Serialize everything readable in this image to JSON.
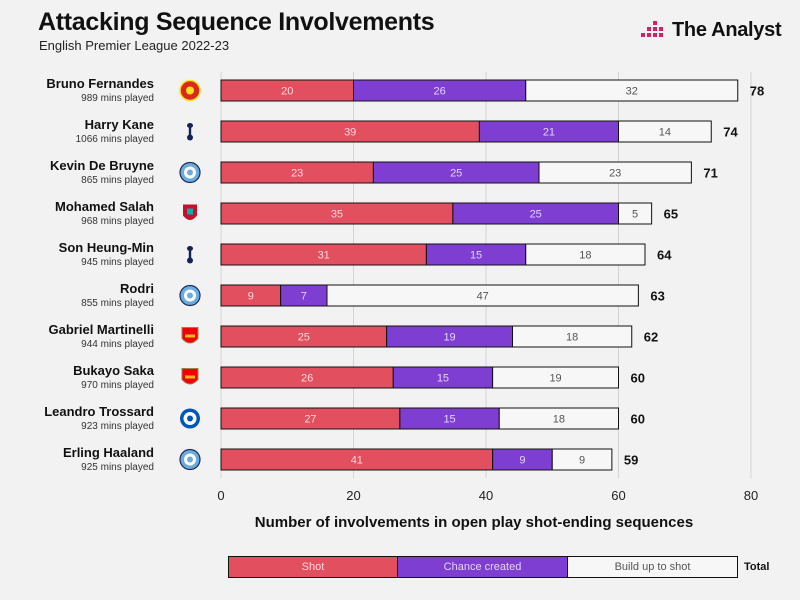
{
  "header": {
    "title": "Attacking Sequence Involvements",
    "subtitle": "English Premier League 2022-23"
  },
  "brand": {
    "name": "The Analyst"
  },
  "legend": {
    "shot": "Shot",
    "chance": "Chance created",
    "build": "Build up to shot",
    "total": "Total"
  },
  "colors": {
    "shot": "#e24f5f",
    "chance": "#7d3ed1",
    "build": "#f7f7f7",
    "brand": "#d61f6b"
  },
  "chart_data": {
    "type": "bar",
    "orientation": "horizontal",
    "stacked": true,
    "title": "Attacking Sequence Involvements",
    "subtitle": "English Premier League 2022-23",
    "xlabel": "Number of involvements in open play shot-ending sequences",
    "ylabel": "",
    "xlim": [
      0,
      80
    ],
    "xticks": [
      0,
      20,
      40,
      60,
      80
    ],
    "grid": true,
    "legend_position": "bottom",
    "categories": [
      "Bruno Fernandes",
      "Harry Kane",
      "Kevin De Bruyne",
      "Mohamed Salah",
      "Son Heung-Min",
      "Rodri",
      "Gabriel Martinelli",
      "Bukayo Saka",
      "Leandro Trossard",
      "Erling Haaland"
    ],
    "minutes": [
      "989 mins played",
      "1066 mins played",
      "865 mins played",
      "968 mins played",
      "945 mins played",
      "855 mins played",
      "944 mins played",
      "970 mins played",
      "923 mins played",
      "925 mins played"
    ],
    "clubs": [
      "man-utd-crest",
      "tottenham-crest",
      "man-city-crest",
      "liverpool-crest",
      "tottenham-crest",
      "man-city-crest",
      "arsenal-crest",
      "arsenal-crest",
      "brighton-crest",
      "man-city-crest"
    ],
    "series": [
      {
        "name": "Shot",
        "values": [
          20,
          39,
          23,
          35,
          31,
          9,
          25,
          26,
          27,
          41
        ]
      },
      {
        "name": "Chance created",
        "values": [
          26,
          21,
          25,
          25,
          15,
          7,
          19,
          15,
          15,
          9
        ]
      },
      {
        "name": "Build up to shot",
        "values": [
          32,
          14,
          23,
          5,
          18,
          47,
          18,
          19,
          18,
          9
        ]
      }
    ],
    "totals": [
      78,
      74,
      71,
      65,
      64,
      63,
      62,
      60,
      60,
      59
    ]
  }
}
